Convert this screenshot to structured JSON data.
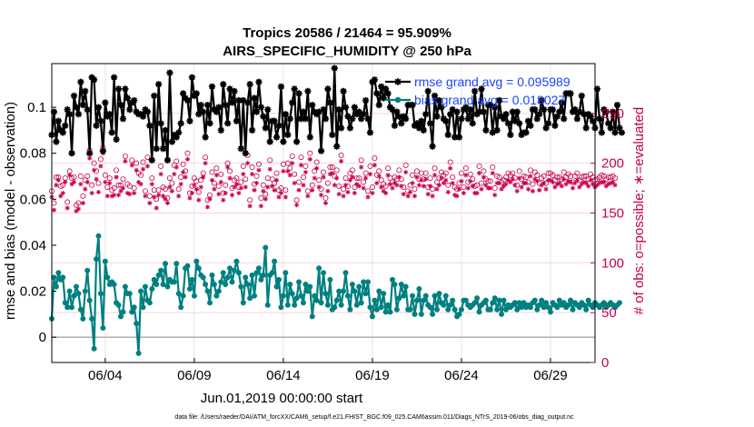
{
  "chart_data": {
    "type": "line",
    "title": "Tropics 20586 / 21464 = 95.909%",
    "subtitle": "AIRS_SPECIFIC_HUMIDITY @ 250 hPa",
    "xlabel": "Jun.01,2019 00:00:00 start",
    "ylabel": "rmse and bias (model - observation)",
    "ylabel_right": "# of obs: o=possible; ∗=evaluated",
    "xlim": [
      1,
      31.5
    ],
    "ylim": [
      -0.011,
      0.119
    ],
    "ylim_right": [
      -0.05,
      300
    ],
    "x_ticks": [
      {
        "value": 4,
        "label": "06/04"
      },
      {
        "value": 9,
        "label": "06/09"
      },
      {
        "value": 14,
        "label": "06/14"
      },
      {
        "value": 19,
        "label": "06/19"
      },
      {
        "value": 24,
        "label": "06/24"
      },
      {
        "value": 29,
        "label": "06/29"
      }
    ],
    "y_ticks": [
      {
        "value": 0,
        "label": "0"
      },
      {
        "value": 0.02,
        "label": "0.02"
      },
      {
        "value": 0.04,
        "label": "0.04"
      },
      {
        "value": 0.06,
        "label": "0.06"
      },
      {
        "value": 0.08,
        "label": "0.08"
      },
      {
        "value": 0.1,
        "label": "0.1"
      }
    ],
    "y_ticks_right": [
      {
        "value": 0,
        "label": "0"
      },
      {
        "value": 50,
        "label": "50"
      },
      {
        "value": 100,
        "label": "100"
      },
      {
        "value": 150,
        "label": "150"
      },
      {
        "value": 200,
        "label": "200"
      },
      {
        "value": 250,
        "label": "250"
      }
    ],
    "legend": [
      {
        "label": "rmse grand avg = 0.095989",
        "color": "#000000",
        "marker": "asterisk"
      },
      {
        "label": "bias grand avg = 0.018027",
        "color": "#008080",
        "marker": "circle"
      }
    ],
    "legend_position": "top-right",
    "series": [
      {
        "name": "rmse",
        "color": "#000000",
        "values": [
          0.088,
          0.098,
          0.085,
          0.094,
          0.09,
          0.089,
          0.092,
          0.099,
          0.097,
          0.08,
          0.105,
          0.1,
          0.097,
          0.111,
          0.101,
          0.107,
          0.099,
          0.08,
          0.113,
          0.112,
          0.092,
          0.1,
          0.094,
          0.081,
          0.102,
          0.096,
          0.097,
          0.089,
          0.113,
          0.086,
          0.108,
          0.101,
          0.095,
          0.108,
          0.104,
          0.099,
          0.102,
          0.103,
          0.098,
          0.097,
          0.097,
          0.096,
          0.099,
          0.098,
          0.092,
          0.077,
          0.105,
          0.082,
          0.11,
          0.093,
          0.082,
          0.09,
          0.077,
          0.115,
          0.085,
          0.088,
          0.087,
          0.089,
          0.093,
          0.106,
          0.104,
          0.103,
          0.094,
          0.113,
          0.105,
          0.106,
          0.097,
          0.101,
          0.098,
          0.087,
          0.101,
          0.093,
          0.109,
          0.099,
          0.098,
          0.1,
          0.09,
          0.11,
          0.101,
          0.093,
          0.108,
          0.102,
          0.107,
          0.094,
          0.103,
          0.082,
          0.103,
          0.08,
          0.102,
          0.11,
          0.09,
          0.104,
          0.098,
          0.111,
          0.1,
          0.096,
          0.091,
          0.099,
          0.085,
          0.094,
          0.094,
          0.087,
          0.092,
          0.109,
          0.085,
          0.097,
          0.088,
          0.095,
          0.102,
          0.108,
          0.085,
          0.106,
          0.095,
          0.098,
          0.095,
          0.107,
          0.087,
          0.101,
          0.098,
          0.097,
          0.098,
          0.081,
          0.099,
          0.095,
          0.108,
          0.102,
          0.088,
          0.117,
          0.083,
          0.099,
          0.091,
          0.107,
          0.1,
          0.096,
          0.091,
          0.095,
          0.1,
          0.097,
          0.098,
          0.095,
          0.097,
          0.103,
          0.095,
          0.089,
          0.111,
          0.112,
          0.106,
          0.101,
          0.109,
          0.104,
          0.108,
          0.106,
          0.1,
          0.099,
          0.092,
          0.098,
          0.096,
          0.093,
          0.096,
          0.095,
          0.101,
          0.101,
          0.101,
          0.092,
          0.093,
          0.091,
          0.094,
          0.09,
          0.097,
          0.107,
          0.093,
          0.083,
          0.105,
          0.096,
          0.103,
          0.1,
          0.095,
          0.094,
          0.088,
          0.097,
          0.099,
          0.087,
          0.098,
          0.087,
          0.095,
          0.099,
          0.1,
          0.095,
          0.099,
          0.093,
          0.107,
          0.097,
          0.098,
          0.108,
          0.098,
          0.09,
          0.101,
          0.101,
          0.089,
          0.1,
          0.09,
          0.103,
          0.096,
          0.095,
          0.097,
          0.093,
          0.088,
          0.098,
          0.094,
          0.098,
          0.093,
          0.088,
          0.089,
          0.089,
          0.094,
          0.092,
          0.099,
          0.099,
          0.095,
          0.097,
          0.103,
          0.099,
          0.091,
          0.093,
          0.099,
          0.099,
          0.092,
          0.096,
          0.098,
          0.102,
          0.095,
          0.106,
          0.106,
          0.106,
          0.098,
          0.099,
          0.095,
          0.098,
          0.105,
          0.097,
          0.091,
          0.097,
          0.096,
          0.094,
          0.091,
          0.108,
          0.095,
          0.089,
          0.099,
          0.098,
          0.093,
          0.091,
          0.098,
          0.089,
          0.101,
          0.091,
          0.089
        ]
      },
      {
        "name": "bias",
        "color": "#008080",
        "values": [
          0.008,
          0.026,
          0.022,
          0.028,
          0.025,
          0.026,
          0.015,
          0.013,
          0.02,
          0.013,
          0.018,
          0.022,
          0.019,
          0.012,
          0.008,
          0.02,
          0.029,
          0.016,
          0.008,
          -0.005,
          0.034,
          0.044,
          0.019,
          0.004,
          0.033,
          0.026,
          0.023,
          0.024,
          0.023,
          0.015,
          0.014,
          0.009,
          0.011,
          0.022,
          0.019,
          0.019,
          0.011,
          0.013,
          0.006,
          -0.007,
          0.02,
          0.013,
          0.022,
          0.016,
          0.015,
          0.021,
          0.025,
          0.023,
          0.027,
          0.029,
          0.023,
          0.032,
          0.022,
          0.025,
          0.024,
          0.024,
          0.032,
          0.019,
          0.013,
          0.018,
          0.03,
          0.031,
          0.021,
          0.025,
          0.018,
          0.033,
          0.03,
          0.027,
          0.026,
          0.023,
          0.02,
          0.015,
          0.027,
          0.023,
          0.018,
          0.02,
          0.024,
          0.028,
          0.023,
          0.026,
          0.03,
          0.024,
          0.029,
          0.033,
          0.028,
          0.022,
          0.015,
          0.026,
          0.023,
          0.017,
          0.027,
          0.018,
          0.028,
          0.03,
          0.025,
          0.027,
          0.039,
          0.014,
          0.027,
          0.028,
          0.033,
          0.022,
          0.025,
          0.013,
          0.018,
          0.028,
          0.014,
          0.023,
          0.019,
          0.014,
          0.017,
          0.024,
          0.018,
          0.015,
          0.023,
          0.02,
          0.022,
          0.009,
          0.018,
          0.016,
          0.03,
          0.015,
          0.028,
          0.019,
          0.014,
          0.025,
          0.012,
          0.013,
          0.016,
          0.02,
          0.014,
          0.02,
          0.028,
          0.018,
          0.012,
          0.023,
          0.02,
          0.014,
          0.022,
          0.015,
          0.024,
          0.019,
          0.024,
          0.013,
          0.009,
          0.016,
          0.012,
          0.02,
          0.013,
          0.019,
          0.011,
          0.014,
          0.011,
          0.025,
          0.023,
          0.012,
          0.017,
          0.023,
          0.018,
          0.022,
          0.012,
          0.012,
          0.018,
          0.01,
          0.016,
          0.021,
          0.01,
          0.016,
          0.018,
          0.014,
          0.013,
          0.01,
          0.018,
          0.012,
          0.019,
          0.015,
          0.014,
          0.018,
          0.012,
          0.014,
          0.016,
          0.012,
          0.009,
          0.01,
          0.012,
          0.016,
          0.016,
          0.014,
          0.013,
          0.014,
          0.015,
          0.017,
          0.011,
          0.014,
          0.015,
          0.016,
          0.012,
          0.012,
          0.015,
          0.017,
          0.012,
          0.016,
          0.01,
          0.016,
          0.012,
          0.014,
          0.013,
          0.014,
          0.015,
          0.012,
          0.015,
          0.013,
          0.015,
          0.013,
          0.014,
          0.013,
          0.015,
          0.016,
          0.012,
          0.014,
          0.016,
          0.013,
          0.015,
          0.013,
          0.011,
          0.015,
          0.014,
          0.013,
          0.016,
          0.014,
          0.015,
          0.013,
          0.014,
          0.016,
          0.012,
          0.015,
          0.014,
          0.013,
          0.015,
          0.014,
          0.012,
          0.016,
          0.014,
          0.013,
          0.015,
          0.014,
          0.013,
          0.014,
          0.015,
          0.013,
          0.014,
          0.015,
          0.014,
          0.013,
          0.014,
          0.015
        ]
      }
    ],
    "obs_possible": [
      172,
      160,
      186,
      186,
      177,
      178,
      185,
      161,
      192,
      185,
      186,
      158,
      160,
      187,
      167,
      183,
      187,
      213,
      178,
      200,
      192,
      180,
      204,
      216,
      188,
      176,
      185,
      173,
      175,
      193,
      178,
      178,
      184,
      207,
      179,
      177,
      203,
      175,
      200,
      190,
      188,
      201,
      172,
      206,
      167,
      185,
      173,
      164,
      173,
      197,
      176,
      174,
      165,
      185,
      180,
      198,
      202,
      174,
      186,
      199,
      192,
      210,
      170,
      177,
      185,
      182,
      171,
      183,
      190,
      206,
      163,
      168,
      191,
      180,
      195,
      177,
      189,
      170,
      178,
      200,
      192,
      175,
      183,
      185,
      176,
      181,
      197,
      184,
      208,
      163,
      196,
      179,
      187,
      199,
      165,
      178,
      169,
      185,
      203,
      184,
      180,
      190,
      173,
      175,
      199,
      173,
      200,
      195,
      207,
      189,
      163,
      181,
      206,
      186,
      197,
      172,
      210,
      178,
      192,
      201,
      183,
      174,
      191,
      165,
      180,
      196,
      196,
      187,
      193,
      177,
      208,
      174,
      185,
      177,
      190,
      193,
      176,
      185,
      185,
      203,
      181,
      190,
      172,
      197,
      176,
      205,
      188,
      192,
      183,
      179,
      177,
      195,
      185,
      181,
      186,
      184,
      193,
      184,
      176,
      198,
      172,
      178,
      188,
      174,
      192,
      184,
      190,
      184,
      190,
      176,
      185,
      174,
      195,
      181,
      185,
      191,
      188,
      190,
      178,
      201,
      186,
      176,
      174,
      180,
      190,
      176,
      195,
      181,
      189,
      184,
      177,
      178,
      197,
      180,
      192,
      184,
      182,
      182,
      196,
      175,
      187,
      186,
      181,
      183,
      186,
      190,
      188,
      190,
      185,
      178,
      192,
      184,
      187,
      186,
      181,
      193,
      179,
      191,
      188,
      180,
      185,
      187,
      180,
      190,
      190,
      188,
      183,
      186,
      186,
      184,
      191,
      186,
      189,
      187,
      181,
      187,
      190,
      183,
      186,
      187,
      187,
      184,
      189,
      186,
      183,
      184,
      186,
      188,
      187,
      184,
      186,
      186,
      187,
      185
    ],
    "obs_evaluated": [
      166,
      153,
      178,
      183,
      167,
      170,
      181,
      155,
      188,
      179,
      181,
      152,
      154,
      179,
      160,
      174,
      181,
      205,
      170,
      193,
      184,
      171,
      197,
      210,
      181,
      167,
      180,
      167,
      168,
      186,
      168,
      172,
      175,
      202,
      170,
      169,
      198,
      170,
      193,
      181,
      179,
      194,
      167,
      197,
      160,
      179,
      166,
      155,
      168,
      189,
      167,
      164,
      160,
      176,
      172,
      189,
      196,
      167,
      179,
      191,
      186,
      204,
      165,
      170,
      178,
      174,
      163,
      176,
      186,
      200,
      156,
      164,
      183,
      174,
      188,
      169,
      181,
      163,
      170,
      196,
      185,
      168,
      176,
      179,
      170,
      175,
      189,
      176,
      200,
      157,
      189,
      173,
      180,
      193,
      157,
      172,
      164,
      176,
      194,
      177,
      173,
      183,
      166,
      170,
      192,
      166,
      192,
      188,
      200,
      180,
      158,
      173,
      198,
      178,
      191,
      167,
      204,
      173,
      185,
      195,
      176,
      168,
      186,
      160,
      172,
      189,
      190,
      178,
      185,
      169,
      202,
      167,
      178,
      171,
      183,
      186,
      170,
      179,
      177,
      196,
      175,
      185,
      166,
      189,
      170,
      198,
      180,
      187,
      176,
      172,
      170,
      188,
      179,
      175,
      180,
      178,
      186,
      177,
      169,
      191,
      167,
      171,
      180,
      167,
      186,
      178,
      183,
      177,
      184,
      169,
      177,
      167,
      188,
      174,
      178,
      185,
      180,
      183,
      171,
      195,
      180,
      168,
      167,
      174,
      182,
      170,
      188,
      175,
      182,
      177,
      170,
      170,
      190,
      174,
      186,
      178,
      175,
      175,
      190,
      168,
      180,
      180,
      174,
      177,
      179,
      183,
      181,
      184,
      178,
      172,
      185,
      176,
      180,
      180,
      174,
      187,
      172,
      184,
      182,
      173,
      178,
      180,
      174,
      183,
      183,
      181,
      176,
      179,
      180,
      177,
      184,
      179,
      182,
      181,
      175,
      180,
      183,
      176,
      179,
      181,
      180,
      177,
      183,
      179,
      176,
      178,
      180,
      181,
      181,
      177,
      179,
      180,
      181,
      178
    ]
  },
  "footer": {
    "note": "data file: /Users/raeder/DAI/ATM_forcXX/CAM6_setup/f.e21.FHIST_BGC.f09_025.CAM6assim.011/Diags_NTrS_2019-06/obs_diag_output.nc"
  }
}
